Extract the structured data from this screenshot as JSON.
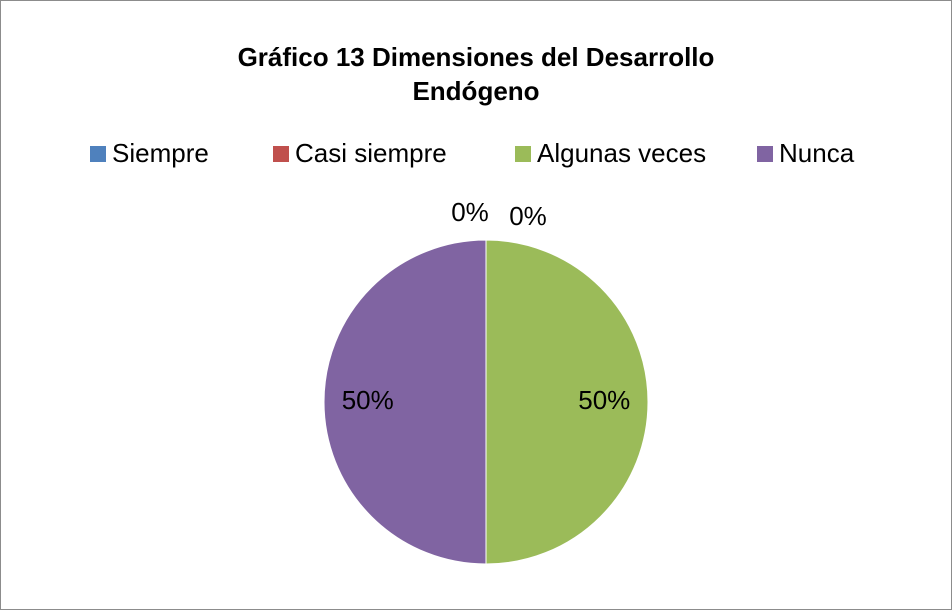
{
  "chart_data": {
    "type": "pie",
    "title": "Gráfico 13 Dimensiones del Desarrollo Endógeno",
    "categories": [
      "Siempre",
      "Casi siempre",
      "Algunas veces",
      "Nunca"
    ],
    "values": [
      0,
      0,
      50,
      50
    ],
    "value_labels": [
      "0%",
      "0%",
      "50%",
      "50%"
    ],
    "colors": [
      "#4f81bd",
      "#c0504d",
      "#9bbb59",
      "#8064a2"
    ],
    "legend": "top"
  }
}
